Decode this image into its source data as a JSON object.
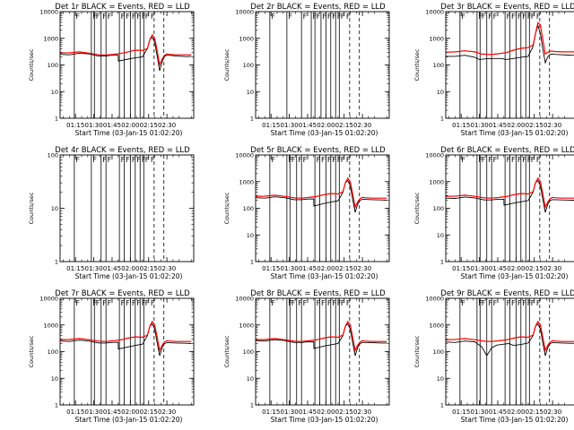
{
  "figure": {
    "start_time_label": "Start Time (03-Jan-15 01:02:20)",
    "ylabel": "Counts/sec",
    "time_ticks": [
      "01:15",
      "01:30",
      "01:45",
      "02:00",
      "02:15",
      "02:30"
    ],
    "time_tick_minutes": [
      75,
      90,
      105,
      120,
      135,
      150
    ],
    "xlim_minutes": [
      62.33,
      172
    ],
    "colors": {
      "events": "#000000",
      "lld": "#ff0000",
      "axes": "#000000"
    }
  },
  "chart_data": [
    {
      "type": "line",
      "title": "Det 1r  BLACK = Events, RED = LLD",
      "ylog": true,
      "ylim": [
        1,
        10000
      ],
      "y_ticks": [
        "1",
        "10",
        "100",
        "1000",
        "10000"
      ],
      "solid_vlines": [
        74,
        88,
        90.5,
        96,
        100,
        111,
        115,
        120,
        124,
        128,
        131
      ],
      "dashed_vlines": [
        139.5,
        147.5
      ],
      "flag_label": "F",
      "series": [
        {
          "color": "#000000",
          "x": [
            62.33,
            70,
            78,
            86,
            94,
            100,
            104,
            110,
            110.2,
            118,
            124,
            130,
            134,
            136,
            138,
            140,
            142,
            144,
            146,
            148,
            150,
            152,
            158,
            166,
            170
          ],
          "y": [
            250,
            240,
            275,
            260,
            215,
            215,
            230,
            230,
            140,
            165,
            185,
            200,
            420,
            900,
            1100,
            700,
            220,
            60,
            130,
            210,
            230,
            230,
            215,
            205,
            210
          ]
        },
        {
          "color": "#ff0000",
          "x": [
            62.33,
            70,
            78,
            86,
            94,
            100,
            106,
            112,
            118,
            124,
            130,
            134,
            136,
            138,
            140,
            142,
            144,
            146,
            148,
            150,
            152,
            158,
            166,
            170
          ],
          "y": [
            280,
            285,
            310,
            275,
            240,
            235,
            250,
            270,
            310,
            360,
            350,
            420,
            900,
            1350,
            1000,
            350,
            100,
            165,
            230,
            260,
            250,
            240,
            240,
            240
          ]
        }
      ]
    },
    {
      "type": "line",
      "title": "Det 2r  BLACK = Events, RED = LLD",
      "ylog": true,
      "ylim": [
        1,
        10000
      ],
      "y_ticks": [
        "1",
        "10",
        "100",
        "1000",
        "10000"
      ],
      "solid_vlines": [
        74,
        88,
        100,
        108,
        111,
        116,
        120,
        124,
        128,
        131
      ],
      "dashed_vlines": [
        139.5,
        147.5
      ],
      "flag_label": "F",
      "series": []
    },
    {
      "type": "line",
      "title": "Det 3r  BLACK = Events, RED = LLD",
      "ylog": true,
      "ylim": [
        1,
        10000
      ],
      "y_ticks": [
        "1",
        "10",
        "100",
        "1000",
        "10000"
      ],
      "solid_vlines": [
        74,
        88,
        90.5,
        96,
        100,
        111,
        115,
        120,
        124,
        128,
        131
      ],
      "dashed_vlines": [
        139.5,
        147.5
      ],
      "flag_label": "F",
      "series": [
        {
          "color": "#000000",
          "x": [
            62.33,
            70,
            78,
            86,
            90,
            96,
            102,
            108,
            112,
            118,
            124,
            130,
            134,
            136,
            138,
            140,
            142,
            144,
            146,
            148,
            150,
            152,
            158,
            166,
            170
          ],
          "y": [
            210,
            210,
            230,
            195,
            160,
            170,
            175,
            175,
            160,
            175,
            195,
            210,
            500,
            1500,
            3000,
            1500,
            400,
            120,
            200,
            250,
            260,
            250,
            240,
            230,
            230
          ]
        },
        {
          "color": "#ff0000",
          "x": [
            62.33,
            70,
            78,
            86,
            92,
            100,
            106,
            112,
            118,
            124,
            130,
            134,
            136,
            138,
            140,
            142,
            144,
            146,
            148,
            150,
            152,
            158,
            166,
            170
          ],
          "y": [
            300,
            310,
            340,
            310,
            255,
            245,
            265,
            290,
            360,
            420,
            450,
            560,
            1500,
            3800,
            3200,
            900,
            260,
            300,
            330,
            330,
            320,
            310,
            310,
            310
          ]
        }
      ]
    },
    {
      "type": "line",
      "title": "Det 4r  BLACK = Events, RED = LLD",
      "ylog": true,
      "ylim": [
        1,
        100
      ],
      "y_ticks": [
        "1",
        "10",
        "100"
      ],
      "solid_vlines": [
        74,
        88,
        96,
        100,
        111,
        115,
        120,
        124,
        128,
        131
      ],
      "dashed_vlines": [
        139.5,
        147.5
      ],
      "flag_label": "F",
      "series": []
    },
    {
      "type": "line",
      "title": "Det 5r  BLACK = Events, RED = LLD",
      "ylog": true,
      "ylim": [
        1,
        10000
      ],
      "y_ticks": [
        "1",
        "10",
        "100",
        "1000",
        "10000"
      ],
      "solid_vlines": [
        74,
        88,
        90.5,
        96,
        100,
        111,
        115,
        120,
        124,
        128,
        131
      ],
      "dashed_vlines": [
        139.5,
        147.5
      ],
      "flag_label": "F",
      "series": [
        {
          "color": "#000000",
          "x": [
            62.33,
            70,
            78,
            86,
            94,
            100,
            104,
            110,
            110.2,
            118,
            124,
            130,
            134,
            136,
            138,
            140,
            142,
            144,
            146,
            148,
            150,
            152,
            158,
            166,
            170
          ],
          "y": [
            250,
            240,
            270,
            250,
            210,
            210,
            220,
            225,
            120,
            150,
            170,
            190,
            400,
            900,
            1100,
            700,
            220,
            70,
            140,
            200,
            215,
            215,
            210,
            205,
            200
          ]
        },
        {
          "color": "#ff0000",
          "x": [
            62.33,
            70,
            78,
            86,
            94,
            100,
            106,
            112,
            118,
            124,
            130,
            134,
            136,
            138,
            140,
            142,
            144,
            146,
            148,
            150,
            152,
            158,
            166,
            170
          ],
          "y": [
            280,
            285,
            310,
            280,
            245,
            240,
            255,
            275,
            320,
            360,
            345,
            420,
            900,
            1350,
            1000,
            350,
            110,
            170,
            230,
            255,
            250,
            240,
            240,
            240
          ]
        }
      ]
    },
    {
      "type": "line",
      "title": "Det 6r  BLACK = Events, RED = LLD",
      "ylog": true,
      "ylim": [
        1,
        10000
      ],
      "y_ticks": [
        "1",
        "10",
        "100",
        "1000",
        "10000"
      ],
      "solid_vlines": [
        74,
        88,
        90.5,
        96,
        100,
        111,
        115,
        120,
        124,
        128,
        131
      ],
      "dashed_vlines": [
        139.5,
        147.5
      ],
      "flag_label": "F",
      "series": [
        {
          "color": "#000000",
          "x": [
            62.33,
            70,
            78,
            86,
            94,
            100,
            104,
            110,
            110.2,
            118,
            124,
            130,
            134,
            136,
            138,
            140,
            142,
            144,
            146,
            148,
            150,
            152,
            158,
            166,
            170
          ],
          "y": [
            240,
            235,
            265,
            245,
            205,
            205,
            215,
            220,
            130,
            155,
            175,
            195,
            400,
            900,
            1100,
            700,
            220,
            70,
            140,
            200,
            210,
            210,
            205,
            200,
            200
          ]
        },
        {
          "color": "#ff0000",
          "x": [
            62.33,
            70,
            78,
            86,
            94,
            100,
            106,
            112,
            118,
            124,
            130,
            134,
            136,
            138,
            140,
            142,
            144,
            146,
            148,
            150,
            152,
            158,
            166,
            170
          ],
          "y": [
            280,
            285,
            310,
            280,
            245,
            240,
            255,
            275,
            320,
            360,
            345,
            420,
            900,
            1350,
            1000,
            350,
            110,
            170,
            230,
            255,
            250,
            240,
            240,
            240
          ]
        }
      ]
    },
    {
      "type": "line",
      "title": "Det 7r  BLACK = Events, RED = LLD",
      "ylog": true,
      "ylim": [
        1,
        10000
      ],
      "y_ticks": [
        "1",
        "10",
        "100",
        "1000",
        "10000"
      ],
      "solid_vlines": [
        74,
        88,
        90.5,
        96,
        100,
        111,
        115,
        120,
        124,
        128,
        131
      ],
      "dashed_vlines": [
        139.5,
        147.5
      ],
      "flag_label": "F",
      "series": [
        {
          "color": "#000000",
          "x": [
            62.33,
            70,
            78,
            86,
            94,
            100,
            104,
            110,
            110.2,
            118,
            124,
            130,
            134,
            136,
            138,
            140,
            142,
            144,
            146,
            148,
            150,
            152,
            158,
            166,
            170
          ],
          "y": [
            250,
            240,
            270,
            250,
            210,
            210,
            220,
            225,
            125,
            150,
            170,
            190,
            400,
            900,
            1100,
            700,
            220,
            70,
            140,
            200,
            215,
            215,
            210,
            205,
            200
          ]
        },
        {
          "color": "#ff0000",
          "x": [
            62.33,
            70,
            78,
            86,
            94,
            100,
            106,
            112,
            118,
            124,
            130,
            134,
            136,
            138,
            140,
            142,
            144,
            146,
            148,
            150,
            152,
            158,
            166,
            170
          ],
          "y": [
            280,
            285,
            310,
            280,
            245,
            240,
            255,
            275,
            320,
            360,
            345,
            420,
            900,
            1350,
            1000,
            350,
            110,
            170,
            230,
            255,
            250,
            240,
            240,
            240
          ]
        }
      ]
    },
    {
      "type": "line",
      "title": "Det 8r  BLACK = Events, RED = LLD",
      "ylog": true,
      "ylim": [
        1,
        10000
      ],
      "y_ticks": [
        "1",
        "10",
        "100",
        "1000",
        "10000"
      ],
      "solid_vlines": [
        74,
        88,
        90.5,
        96,
        100,
        111,
        115,
        120,
        124,
        128,
        131
      ],
      "dashed_vlines": [
        139.5,
        147.5
      ],
      "flag_label": "F",
      "series": [
        {
          "color": "#000000",
          "x": [
            62.33,
            70,
            78,
            86,
            94,
            100,
            104,
            110,
            110.2,
            118,
            124,
            130,
            134,
            136,
            138,
            140,
            142,
            144,
            146,
            148,
            150,
            152,
            158,
            166,
            170
          ],
          "y": [
            260,
            250,
            280,
            260,
            220,
            220,
            230,
            235,
            130,
            160,
            180,
            200,
            400,
            900,
            1100,
            700,
            220,
            70,
            140,
            200,
            220,
            220,
            215,
            210,
            210
          ]
        },
        {
          "color": "#ff0000",
          "x": [
            62.33,
            70,
            78,
            86,
            94,
            100,
            106,
            112,
            118,
            124,
            130,
            134,
            136,
            138,
            140,
            142,
            144,
            146,
            148,
            150,
            152,
            158,
            166,
            170
          ],
          "y": [
            280,
            285,
            310,
            280,
            245,
            240,
            255,
            275,
            320,
            360,
            345,
            420,
            900,
            1350,
            1000,
            350,
            110,
            170,
            230,
            255,
            250,
            240,
            240,
            240
          ]
        }
      ]
    },
    {
      "type": "line",
      "title": "Det 9r  BLACK = Events, RED = LLD",
      "ylog": true,
      "ylim": [
        1,
        10000
      ],
      "y_ticks": [
        "1",
        "10",
        "100",
        "1000",
        "10000"
      ],
      "solid_vlines": [
        74,
        88,
        90.5,
        96,
        100,
        111,
        115,
        120,
        124,
        128,
        131
      ],
      "dashed_vlines": [
        139.5,
        147.5
      ],
      "flag_label": "F",
      "series": [
        {
          "color": "#000000",
          "x": [
            62.33,
            70,
            78,
            86,
            92,
            96,
            100,
            104,
            110,
            114,
            118,
            124,
            130,
            134,
            136,
            138,
            140,
            142,
            144,
            146,
            148,
            150,
            152,
            158,
            166,
            170
          ],
          "y": [
            230,
            220,
            250,
            235,
            150,
            70,
            140,
            175,
            190,
            200,
            170,
            185,
            210,
            400,
            900,
            1100,
            700,
            220,
            70,
            140,
            200,
            215,
            215,
            210,
            205,
            200
          ]
        },
        {
          "color": "#ff0000",
          "x": [
            62.33,
            70,
            78,
            86,
            94,
            100,
            106,
            112,
            118,
            124,
            130,
            134,
            136,
            138,
            140,
            142,
            144,
            146,
            148,
            150,
            152,
            158,
            166,
            170
          ],
          "y": [
            280,
            285,
            310,
            280,
            245,
            240,
            255,
            275,
            320,
            360,
            345,
            420,
            900,
            1350,
            1000,
            350,
            110,
            170,
            230,
            255,
            250,
            240,
            240,
            240
          ]
        }
      ]
    }
  ]
}
